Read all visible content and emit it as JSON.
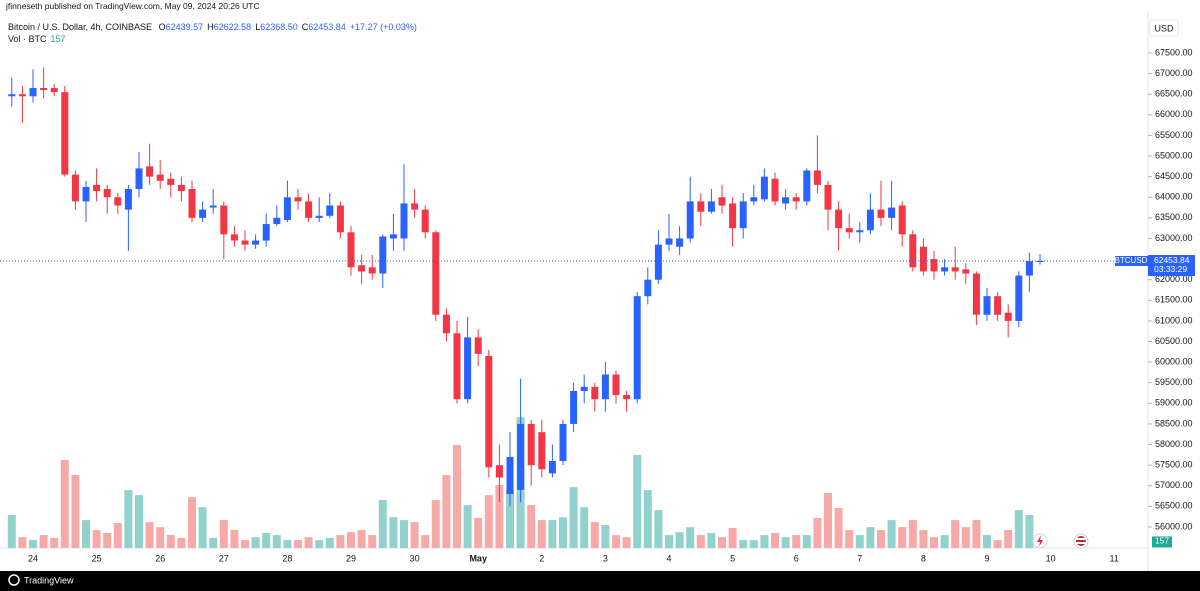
{
  "header": {
    "publisher": "jfinneseth published on TradingView.com, May 09, 2024 20:26 UTC",
    "brand": "TradingView"
  },
  "chart_data": {
    "type": "candlestick",
    "title": "Bitcoin / U.S. Dollar, 4h, COINBASE",
    "legend_values": [
      {
        "label": "O",
        "value": "62439.57"
      },
      {
        "label": "H",
        "value": "62622.58"
      },
      {
        "label": "L",
        "value": "62368.50"
      },
      {
        "label": "C",
        "value": "62453.84"
      }
    ],
    "change": "+17.27 (+0.03%)",
    "volume_label": "Vol · BTC",
    "currency": "USD",
    "symbol": "BTCUSD",
    "countdown": "03:33:29",
    "up_color": "#2962ff",
    "down_color": "#f23645",
    "volume_up_color": "#92d2cc",
    "volume_down_color": "#f7a9a7",
    "ylim": [
      55490,
      68495
    ],
    "vlim": [
      0,
      6000
    ],
    "yticks": [
      {
        "value": 56000,
        "label": "56000.00"
      },
      {
        "value": 56500,
        "label": "56500.00"
      },
      {
        "value": 57000,
        "label": "57000.00"
      },
      {
        "value": 57500,
        "label": "57500.00"
      },
      {
        "value": 58000,
        "label": "58000.00"
      },
      {
        "value": 58500,
        "label": "58500.00"
      },
      {
        "value": 59000,
        "label": "59000.00"
      },
      {
        "value": 59500,
        "label": "59500.00"
      },
      {
        "value": 60000,
        "label": "60000.00"
      },
      {
        "value": 60500,
        "label": "60500.00"
      },
      {
        "value": 61000,
        "label": "61000.00"
      },
      {
        "value": 61500,
        "label": "61500.00"
      },
      {
        "value": 62000,
        "label": "62000.00"
      },
      {
        "value": 62500,
        "label": "62500.00"
      },
      {
        "value": 63000,
        "label": "63000.00"
      },
      {
        "value": 63500,
        "label": "63500.00"
      },
      {
        "value": 64000,
        "label": "64000.00"
      },
      {
        "value": 64500,
        "label": "64500.00"
      },
      {
        "value": 65000,
        "label": "65000.00"
      },
      {
        "value": 65500,
        "label": "65500.00"
      },
      {
        "value": 66000,
        "label": "66000.00"
      },
      {
        "value": 66500,
        "label": "66500.00"
      },
      {
        "value": 67000,
        "label": "67000.00"
      },
      {
        "value": 67500,
        "label": "67500.00"
      }
    ],
    "categories": [
      null,
      null,
      "24",
      null,
      null,
      null,
      null,
      null,
      "25",
      null,
      null,
      null,
      null,
      null,
      "26",
      null,
      null,
      null,
      null,
      null,
      "27",
      null,
      null,
      null,
      null,
      null,
      "28",
      null,
      null,
      null,
      null,
      null,
      "29",
      null,
      null,
      null,
      null,
      null,
      "30",
      null,
      null,
      null,
      null,
      null,
      "May",
      null,
      null,
      null,
      null,
      null,
      "2",
      null,
      null,
      null,
      null,
      null,
      "3",
      null,
      null,
      null,
      null,
      null,
      "4",
      null,
      null,
      null,
      null,
      null,
      "5",
      null,
      null,
      null,
      null,
      null,
      "6",
      null,
      null,
      null,
      null,
      null,
      "7",
      null,
      null,
      null,
      null,
      null,
      "8",
      null,
      null,
      null,
      null,
      null,
      "9",
      null,
      null,
      null,
      null,
      null
    ],
    "future_categories": [
      "10",
      "11"
    ],
    "open": [
      66450,
      66500,
      66450,
      66650,
      66650,
      66550,
      64550,
      63900,
      64300,
      64200,
      64000,
      63700,
      64200,
      64750,
      64550,
      64450,
      64300,
      64200,
      63500,
      63750,
      63800,
      63100,
      62950,
      62850,
      62950,
      63350,
      63450,
      64000,
      63900,
      63500,
      63550,
      63800,
      63150,
      62350,
      62300,
      62150,
      63000,
      63000,
      63850,
      63700,
      63150,
      61150,
      60700,
      59100,
      60600,
      60150,
      57500,
      56800,
      56900,
      58500,
      58300,
      57300,
      57600,
      58500,
      59300,
      59400,
      59100,
      59700,
      59200,
      59100,
      61600,
      62000,
      62850,
      62800,
      63000,
      63900,
      63650,
      64000,
      63850,
      63250,
      63900,
      63950,
      64450,
      63850,
      64000,
      63900,
      64650,
      64300,
      63700,
      63250,
      63150,
      63200,
      63700,
      63500,
      63800,
      63100,
      62800,
      62500,
      62200,
      62300,
      62250,
      62150,
      61150,
      61600,
      61200,
      61000,
      62100,
      62439.57
    ],
    "high": [
      66900,
      66700,
      67100,
      67150,
      66750,
      66700,
      64650,
      64400,
      64700,
      64300,
      64100,
      64300,
      65100,
      65300,
      64900,
      64600,
      64500,
      64400,
      63900,
      64200,
      63900,
      63300,
      63200,
      63100,
      63600,
      63800,
      64400,
      64200,
      64100,
      64000,
      64100,
      63900,
      63300,
      62600,
      62600,
      63100,
      63600,
      64800,
      64200,
      63800,
      63200,
      61300,
      61000,
      61100,
      60800,
      60300,
      58000,
      58300,
      59600,
      58600,
      58600,
      58000,
      58600,
      59500,
      59700,
      59500,
      60000,
      59800,
      59300,
      61700,
      62300,
      63200,
      63600,
      63300,
      64500,
      64100,
      64200,
      64300,
      64000,
      64100,
      64300,
      64700,
      64600,
      64200,
      64100,
      64700,
      65500,
      64400,
      63900,
      63600,
      63400,
      64100,
      64400,
      64400,
      63900,
      63200,
      63000,
      62700,
      62500,
      62800,
      62400,
      62200,
      61800,
      61700,
      61400,
      62200,
      62650,
      62622.58
    ],
    "low": [
      66200,
      65800,
      66300,
      66400,
      66450,
      64500,
      63700,
      63400,
      63900,
      63600,
      63600,
      62700,
      64000,
      64300,
      64200,
      64000,
      63900,
      63400,
      63400,
      63600,
      62500,
      62800,
      62700,
      62750,
      62800,
      63300,
      63400,
      63700,
      63400,
      63400,
      63500,
      63000,
      62100,
      61900,
      62000,
      61800,
      62700,
      62700,
      63500,
      63000,
      61000,
      60500,
      59000,
      59000,
      59900,
      57200,
      56600,
      56500,
      56600,
      57000,
      57200,
      57200,
      57500,
      58300,
      59000,
      58800,
      58800,
      59000,
      58800,
      59000,
      61400,
      61900,
      62700,
      62600,
      62900,
      63300,
      63600,
      63600,
      62800,
      63000,
      63800,
      63900,
      63800,
      63700,
      63700,
      63800,
      64100,
      63200,
      62700,
      63000,
      62900,
      63100,
      63300,
      63200,
      62800,
      62200,
      62100,
      62000,
      62100,
      62000,
      61900,
      60900,
      61000,
      61000,
      60600,
      60850,
      61700,
      62368.5
    ],
    "close": [
      66500,
      66450,
      66650,
      66600,
      66550,
      64550,
      63900,
      64250,
      64150,
      64000,
      63800,
      64200,
      64700,
      64500,
      64400,
      64300,
      64150,
      63500,
      63700,
      63800,
      63100,
      62950,
      62850,
      62950,
      63350,
      63500,
      64000,
      63900,
      63500,
      63550,
      63800,
      63150,
      62300,
      62200,
      62150,
      63050,
      63100,
      63850,
      63700,
      63150,
      61150,
      60700,
      59100,
      60600,
      60200,
      57450,
      57200,
      57700,
      58500,
      57500,
      57400,
      57600,
      58500,
      59300,
      59400,
      59100,
      59700,
      59200,
      59100,
      61600,
      62000,
      62850,
      63000,
      63000,
      63900,
      63650,
      63900,
      63800,
      63250,
      63900,
      64000,
      64500,
      63900,
      64000,
      63900,
      64650,
      64300,
      63700,
      63250,
      63150,
      63200,
      63700,
      63500,
      63750,
      63100,
      62300,
      62200,
      62200,
      62300,
      62200,
      62150,
      61150,
      61600,
      61150,
      61000,
      62100,
      62450,
      62453.84
    ],
    "volume": [
      790,
      260,
      190,
      310,
      240,
      2110,
      1750,
      670,
      430,
      360,
      600,
      1390,
      1270,
      620,
      500,
      310,
      240,
      1220,
      980,
      240,
      670,
      430,
      190,
      260,
      360,
      310,
      190,
      190,
      260,
      190,
      240,
      310,
      380,
      430,
      310,
      1150,
      740,
      670,
      620,
      310,
      1150,
      1750,
      2470,
      1030,
      720,
      1270,
      1510,
      1390,
      3140,
      1030,
      670,
      670,
      740,
      1460,
      980,
      620,
      550,
      310,
      260,
      2230,
      1390,
      910,
      310,
      380,
      500,
      310,
      360,
      260,
      480,
      190,
      190,
      310,
      360,
      260,
      310,
      310,
      720,
      1320,
      960,
      430,
      310,
      500,
      430,
      670,
      500,
      670,
      430,
      260,
      310,
      670,
      500,
      670,
      310,
      190,
      430,
      910,
      790,
      157
    ]
  }
}
